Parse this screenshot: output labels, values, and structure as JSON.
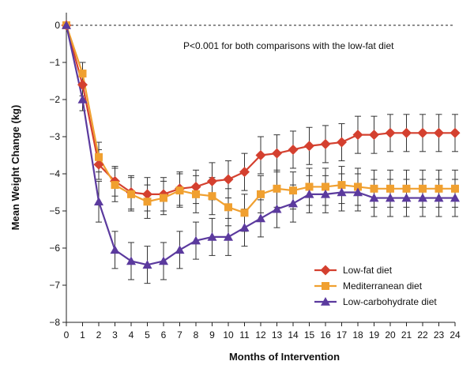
{
  "chart_data": {
    "type": "line",
    "title": "",
    "xlabel": "Months of Intervention",
    "ylabel": "Mean Weight Change (kg)",
    "annotation": "P<0.001 for both comparisons with the low-fat  diet",
    "xlim": [
      0,
      24
    ],
    "ylim": [
      -8,
      0
    ],
    "x_ticks": [
      0,
      1,
      2,
      3,
      4,
      5,
      6,
      7,
      8,
      9,
      10,
      11,
      12,
      13,
      14,
      15,
      16,
      17,
      18,
      19,
      20,
      21,
      22,
      23,
      24
    ],
    "y_ticks": [
      0,
      -1,
      -2,
      -3,
      -4,
      -5,
      -6,
      -7,
      -8
    ],
    "x_tick_labels": [
      "0",
      "1",
      "2",
      "3",
      "4",
      "5",
      "6",
      "7",
      "8",
      "9",
      "10",
      "11",
      "12",
      "13",
      "14",
      "15",
      "16",
      "17",
      "18",
      "19",
      "20",
      "21",
      "22",
      "23",
      "24"
    ],
    "y_tick_labels": [
      "0",
      "−1",
      "−2",
      "−3",
      "−4",
      "−5",
      "−6",
      "−7",
      "−8"
    ],
    "reference_line": 0,
    "legend_placement": "bottom-right",
    "series": [
      {
        "name": "Low-fat diet",
        "color": "#d4402f",
        "marker": "diamond",
        "x": [
          0,
          1,
          2,
          3,
          4,
          5,
          6,
          7,
          8,
          9,
          10,
          11,
          12,
          13,
          14,
          15,
          16,
          17,
          18,
          19,
          20,
          21,
          22,
          23,
          24
        ],
        "y": [
          0,
          -1.6,
          -3.75,
          -4.2,
          -4.5,
          -4.55,
          -4.55,
          -4.4,
          -4.35,
          -4.2,
          -4.15,
          -3.95,
          -3.5,
          -3.45,
          -3.35,
          -3.25,
          -3.2,
          -3.15,
          -2.95,
          -2.95,
          -2.9,
          -2.9,
          -2.9,
          -2.9,
          -2.9
        ],
        "err": [
          0,
          0.3,
          0.4,
          0.4,
          0.45,
          0.45,
          0.45,
          0.45,
          0.45,
          0.5,
          0.5,
          0.5,
          0.5,
          0.5,
          0.5,
          0.5,
          0.5,
          0.5,
          0.5,
          0.5,
          0.5,
          0.5,
          0.5,
          0.5,
          0.5
        ]
      },
      {
        "name": "Mediterranean diet",
        "color": "#f0a030",
        "marker": "square",
        "x": [
          0,
          1,
          2,
          3,
          4,
          5,
          6,
          7,
          8,
          9,
          10,
          11,
          12,
          13,
          14,
          15,
          16,
          17,
          18,
          19,
          20,
          21,
          22,
          23,
          24
        ],
        "y": [
          0,
          -1.3,
          -3.55,
          -4.3,
          -4.55,
          -4.75,
          -4.65,
          -4.45,
          -4.55,
          -4.6,
          -4.9,
          -5.05,
          -4.55,
          -4.4,
          -4.45,
          -4.35,
          -4.35,
          -4.3,
          -4.35,
          -4.4,
          -4.4,
          -4.4,
          -4.4,
          -4.4,
          -4.4
        ],
        "err": [
          0,
          0.3,
          0.4,
          0.45,
          0.45,
          0.45,
          0.45,
          0.45,
          0.5,
          0.5,
          0.5,
          0.5,
          0.5,
          0.5,
          0.5,
          0.5,
          0.5,
          0.5,
          0.5,
          0.5,
          0.5,
          0.5,
          0.5,
          0.5,
          0.5
        ]
      },
      {
        "name": "Low-carbohydrate diet",
        "color": "#5b3a9e",
        "marker": "triangle",
        "x": [
          0,
          1,
          2,
          3,
          4,
          5,
          6,
          7,
          8,
          9,
          10,
          11,
          12,
          13,
          14,
          15,
          16,
          17,
          18,
          19,
          20,
          21,
          22,
          23,
          24
        ],
        "y": [
          0,
          -2.0,
          -4.75,
          -6.05,
          -6.35,
          -6.45,
          -6.35,
          -6.05,
          -5.8,
          -5.7,
          -5.7,
          -5.45,
          -5.2,
          -4.95,
          -4.8,
          -4.55,
          -4.55,
          -4.5,
          -4.5,
          -4.65,
          -4.65,
          -4.65,
          -4.65,
          -4.65,
          -4.65
        ],
        "err": [
          0,
          0.3,
          0.55,
          0.5,
          0.5,
          0.5,
          0.5,
          0.5,
          0.5,
          0.5,
          0.5,
          0.5,
          0.5,
          0.5,
          0.5,
          0.5,
          0.5,
          0.5,
          0.5,
          0.5,
          0.5,
          0.5,
          0.5,
          0.5,
          0.5
        ]
      }
    ]
  }
}
